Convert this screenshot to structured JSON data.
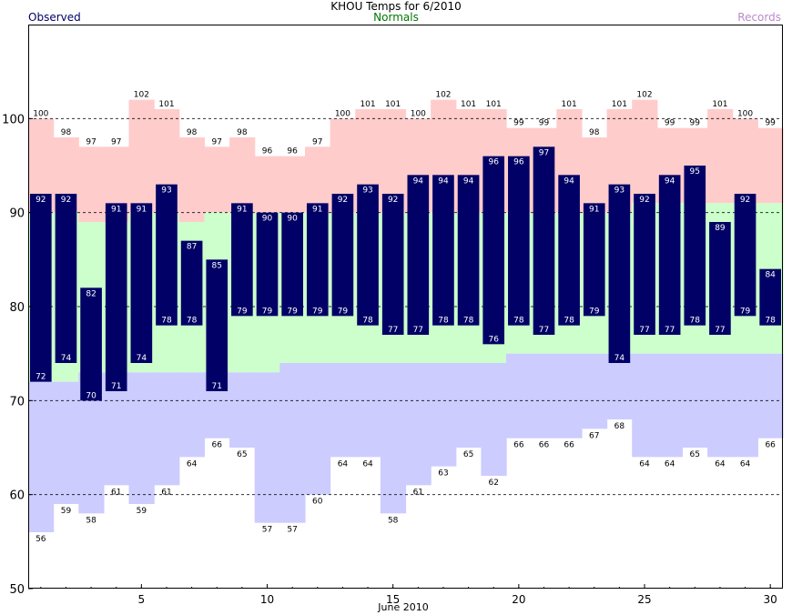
{
  "chart_data": {
    "type": "bar",
    "title": "KHOU Temps for 6/2010",
    "xlabel": "June 2010",
    "legend": {
      "observed": "Observed",
      "normals": "Normals",
      "records": "Records"
    },
    "days": [
      1,
      2,
      3,
      4,
      5,
      6,
      7,
      8,
      9,
      10,
      11,
      12,
      13,
      14,
      15,
      16,
      17,
      18,
      19,
      20,
      21,
      22,
      23,
      24,
      25,
      26,
      27,
      28,
      29,
      30
    ],
    "xticks": [
      5,
      10,
      15,
      20,
      25,
      30
    ],
    "ylim": [
      50,
      110
    ],
    "yticks": [
      50,
      60,
      70,
      80,
      90,
      100
    ],
    "gridlines_dashed": [
      60,
      70,
      80,
      90,
      100
    ],
    "observed_high": [
      92,
      92,
      82,
      91,
      91,
      93,
      87,
      85,
      91,
      90,
      90,
      91,
      92,
      93,
      92,
      94,
      94,
      94,
      96,
      96,
      97,
      94,
      91,
      93,
      92,
      94,
      95,
      89,
      92,
      84
    ],
    "observed_low": [
      72,
      74,
      70,
      71,
      74,
      78,
      78,
      71,
      79,
      79,
      79,
      79,
      79,
      78,
      77,
      77,
      78,
      78,
      76,
      78,
      77,
      78,
      79,
      74,
      77,
      77,
      78,
      77,
      79,
      78
    ],
    "normal_high": [
      90,
      90,
      89,
      89,
      90,
      90,
      89,
      90,
      90,
      90,
      90,
      90,
      90,
      90,
      90,
      90,
      90,
      90,
      90,
      90,
      90,
      90,
      90,
      90,
      91,
      91,
      91,
      91,
      91,
      91
    ],
    "normal_low": [
      72,
      72,
      73,
      73,
      73,
      73,
      73,
      73,
      73,
      73,
      74,
      74,
      74,
      74,
      74,
      74,
      74,
      74,
      74,
      75,
      75,
      75,
      75,
      75,
      75,
      75,
      75,
      75,
      75,
      75
    ],
    "record_high": [
      100,
      98,
      97,
      97,
      102,
      101,
      98,
      97,
      98,
      96,
      96,
      97,
      100,
      101,
      101,
      100,
      102,
      101,
      101,
      99,
      99,
      101,
      98,
      101,
      102,
      99,
      99,
      101,
      100,
      99
    ],
    "record_low": [
      56,
      59,
      58,
      61,
      59,
      61,
      64,
      66,
      65,
      57,
      57,
      60,
      64,
      64,
      58,
      61,
      63,
      65,
      62,
      66,
      66,
      66,
      67,
      68,
      64,
      64,
      65,
      64,
      64,
      66
    ],
    "colors": {
      "observed": "#000066",
      "normal_band": "#ccffcc",
      "record_high_band": "#ffcccc",
      "record_low_band": "#ccccff",
      "legend_observed": "#000066",
      "legend_normals": "#007700",
      "legend_records": "#bb88cc"
    }
  }
}
